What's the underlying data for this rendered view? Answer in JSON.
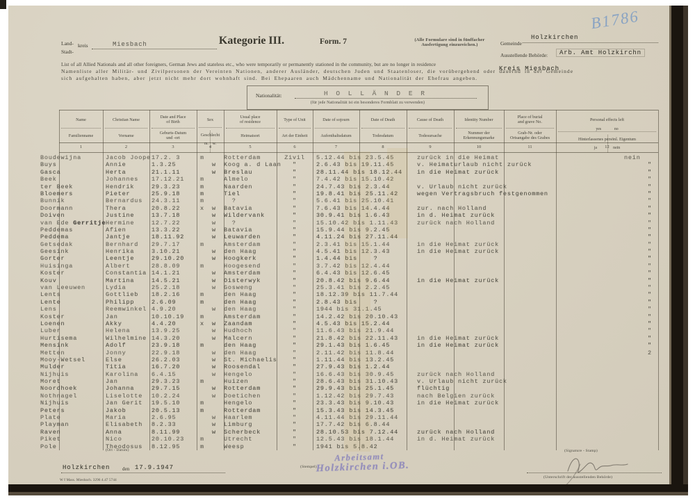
{
  "page": {
    "handwritten_number": "B1786",
    "title": "Kategorie III.",
    "form_no": "Form. 7",
    "note_line1": "(Alle Formulare sind in fünffacher",
    "note_line2": "Ausfertigung einzureichen.)",
    "gemeinde_label": "Gemeinde",
    "gemeinde_value": "Holzkirchen",
    "behoerde_label": "Ausstellende Behörde:",
    "behoerde_value": "Arb. Amt Holzkirchn",
    "kreis_label1": "Land-",
    "kreis_label2": "kreis",
    "stadt_label": "Stadt-",
    "kreis_value": "Miesbach",
    "intro_en": "List of all Allied Nationals and all other foreigners, German Jews and stateless etc., who were temporarily or permanently stationed in the community, but are no longer in residence",
    "intro_kreis_typed": "Kreis Miesbach",
    "intro_de1": "Namenliste aller Militär- und Zivilpersonen der Vereinten Nationen, anderer Ausländer, deutschen Juden und Staatenloser, die vorübergehend oder dauernd in der Gemeinde",
    "intro_de2": "sich aufgehalten haben, aber jetzt nicht mehr dort wohnhaft sind. Bei Ehepaaren auch Mädchenname und Nationalität der Ehefrau angeben.",
    "nationality_label": "Nationalität:",
    "nationality_value": "H O L L Ä N D E R",
    "nationality_note": "(für jede Nationalität ist ein besonderes Formblatt zu verwenden)"
  },
  "table": {
    "columns": [
      {
        "en": "Name",
        "de": "Familienname",
        "num": "1"
      },
      {
        "en": "Christian Name",
        "de": "Vorname",
        "num": "2"
      },
      {
        "en": "Date and Place\nof Birth",
        "de": "Geburts-Datum\nund -ort",
        "num": "3"
      },
      {
        "en": "Sex",
        "de": "Geschlecht",
        "de2": "m.    w.",
        "num": "4"
      },
      {
        "en": "Usual place\nof residence",
        "de": "Heimatsort",
        "num": "5"
      },
      {
        "en": "Type of Unit",
        "de": "Art der Einheit",
        "num": "6"
      },
      {
        "en": "Date of sojourn",
        "de": "Aufenthaltsdatum",
        "num": "7"
      },
      {
        "en": "Date of Death",
        "de": "Todesdatum",
        "num": "8"
      },
      {
        "en": "Cause of Death",
        "de": "Todesursache",
        "num": "9"
      },
      {
        "en": "Identity Number",
        "de": "Nummer der\nErkennungsmarke",
        "num": "10"
      },
      {
        "en": "Place of burial\nand grave No.",
        "de": "Grab-Nr. oder\nOrtsangabe des Grabes",
        "num": "11"
      },
      {
        "en": "Personal effects left",
        "en2": "yes             no",
        "de": "Hinterlassenes persönl. Eigentum",
        "de2": "ja                nein",
        "num": "12"
      }
    ],
    "rows": [
      {
        "n": "Boudewijna",
        "c": "Jacob Joope",
        "b": "17.2. 3",
        "sm": "m",
        "sw": "",
        "res": "Rotterdam",
        "t": "Zivil",
        "s": "5.12.44 bis 23.5.45",
        "r": "zurück in die Heimat",
        "e": "nein"
      },
      {
        "n": "Buys",
        "c": "Annie",
        "b": "1.3.25",
        "sm": "",
        "sw": "w",
        "res": "Koog a. d Laan",
        "t": "\"",
        "s": "2.6.43 bis 19.11.45",
        "r": "v. Heimaturlaub nicht zurück",
        "e": "\""
      },
      {
        "n": "Gasca",
        "c": "Herta",
        "b": "21.1.11",
        "sm": "",
        "sw": "w",
        "res": "Breslau",
        "t": "\"",
        "s": "28.11.44 bis 18.12.44",
        "r": "in die Heimat zurück",
        "e": "\""
      },
      {
        "n": "Beek",
        "c": "Johannes",
        "b": "17.12.21",
        "sm": "m",
        "sw": "",
        "res": "Almelo",
        "t": "\"",
        "s": "7.4.42 bis 15.10.42",
        "r": "",
        "e": "\""
      },
      {
        "n": "ter Beek",
        "c": "Hendrik",
        "b": "29.3.23",
        "sm": "m",
        "sw": "",
        "res": "Naarden",
        "t": "\"",
        "s": "24.7.43 bis 2.3.44",
        "r": "v. Urlaub nicht zurück",
        "e": "\""
      },
      {
        "n": "Bloemers",
        "c": "Pieter",
        "b": "25.9.18",
        "sm": "m",
        "sw": "",
        "res": "Tiel",
        "t": "\"",
        "s": "19.8.41 bis 25.11.42",
        "r": "wegen Vertragsbruch festgenommen",
        "e": "\""
      },
      {
        "n": "Bunnik",
        "c": "Bernardus",
        "b": "24.3.11",
        "sm": "m",
        "sw": "",
        "res": "  ?",
        "t": "\"",
        "s": "5.6.41 bis 25.10.41",
        "r": "",
        "e": "\""
      },
      {
        "n": "Doormann",
        "c": "Thera",
        "b": "20.8.22",
        "sm": "x",
        "sw": "w",
        "res": "Batavia",
        "t": "\"",
        "s": "7.6.43 bis 14.4.44",
        "r": "zur. nach Holland",
        "e": "\""
      },
      {
        "n": "Doiven",
        "c": "Justine",
        "b": "13.7.18",
        "sm": "",
        "sw": "w",
        "res": "Wildervank",
        "t": "\"",
        "s": "30.9.41 bis 1.6.43",
        "r": "in d. Heimat zurück",
        "e": "\""
      },
      {
        "n": "van Ede",
        "hw": " Gerritje",
        "c": "Hermine",
        "b": "12.7.22",
        "sm": "",
        "sw": "w",
        "res": "  ?",
        "t": "\"",
        "s": "15.10.42 bis 1.11.43",
        "r": "zurück nach Holland",
        "e": "\""
      },
      {
        "n": "Peddemas",
        "c": "Afien",
        "b": "13.3.22",
        "sm": "",
        "sw": "w",
        "res": "Batavia",
        "t": "\"",
        "s": "15.9.44 bis 9.2.45",
        "r": "",
        "e": "\""
      },
      {
        "n": "Peddema",
        "c": "Jantje",
        "b": "18.11.92",
        "sm": "",
        "sw": "w",
        "res": "Leuwarden",
        "t": "\"",
        "s": "4.11.24 bis 27.11.44",
        "r": "",
        "e": "\""
      },
      {
        "n": "Getsedak",
        "c": "Bernhard",
        "b": "29.7.17",
        "sm": "m",
        "sw": "",
        "res": "Amsterdam",
        "t": "\"",
        "s": "2.3.41 bis 15.1.44",
        "r": "in die Heimat zurück",
        "e": "\""
      },
      {
        "n": "Geesink",
        "c": "Henrika",
        "b": "3.10.21",
        "sm": "",
        "sw": "w",
        "res": "den Haag",
        "t": "\"",
        "s": "4.5.41 bis 12.3.43",
        "r": "in die Heimat zurück",
        "e": "\""
      },
      {
        "n": "Gorter",
        "c": "Leentje",
        "b": "29.10.20",
        "sm": "",
        "sw": "w",
        "res": "Hoogkerk",
        "t": "\"",
        "s": "1.4.44 bis    ?",
        "r": "",
        "e": "\""
      },
      {
        "n": "Huisinga",
        "c": "Albert",
        "b": "28.8.09",
        "sm": "m",
        "sw": "",
        "res": "Hoogesend",
        "t": "\"",
        "s": "3.7.42 bis 12.4.44",
        "r": "",
        "e": "\""
      },
      {
        "n": "Koster",
        "c": "Constantia",
        "b": "14.1.21",
        "sm": "",
        "sw": "w",
        "res": "Amsterdam",
        "t": "\"",
        "s": "6.4.43 bis 12.6.45",
        "r": "",
        "e": "\""
      },
      {
        "n": "Kouv",
        "c": "Martina",
        "b": "14.5.21",
        "sm": "",
        "sw": "w",
        "res": "Oisterwyk",
        "t": "\"",
        "s": "20.8.42 bis 9.6.44",
        "r": "in die Heimat zurück",
        "e": "\""
      },
      {
        "n": "van Leeuwen",
        "c": "Lydia",
        "b": "25.2.18",
        "sm": "",
        "sw": "w",
        "res": "Gosweng",
        "t": "\"",
        "s": "25.3.41 bis 2.2.45",
        "r": "",
        "e": "\""
      },
      {
        "n": "Lents",
        "c": "Gottlieb",
        "b": "18.2.16",
        "sm": "m",
        "sw": "",
        "res": "den Haag",
        "t": "\"",
        "s": "18.12.39 bis 11.7.44",
        "r": "",
        "e": "\""
      },
      {
        "n": "Lente",
        "c": "Philipp",
        "b": "2.6.09",
        "sm": "m",
        "sw": "",
        "res": "den Haag",
        "t": "\"",
        "s": "2.8.43 bis    ?",
        "r": "",
        "e": "\""
      },
      {
        "n": "Lens",
        "c": "Reemwinkel",
        "b": "4.9.20",
        "sm": "",
        "sw": "w",
        "res": "den Haag",
        "t": "\"",
        "s": "1944 bis 31.1.45",
        "r": "",
        "e": "\""
      },
      {
        "n": "Koster",
        "c": "Jan",
        "b": "10.10.19",
        "sm": "m",
        "sw": "",
        "res": "Amsterdam",
        "t": "\"",
        "s": "14.2.42 bis 20.10.43",
        "r": "",
        "e": "\""
      },
      {
        "n": "Loenen",
        "c": "Akky",
        "b": "4.4.20",
        "sm": "x",
        "sw": "w",
        "res": "Zaandam",
        "t": "\"",
        "s": "4.5.43 bis 15.2.44",
        "r": "",
        "e": "\""
      },
      {
        "n": "Luber",
        "c": "Helena",
        "b": "13.9.25",
        "sm": "",
        "sw": "w",
        "res": "Hudhoch",
        "t": "\"",
        "s": "11.6.43 bis 21.9.44",
        "r": "",
        "e": "\""
      },
      {
        "n": "Hurtisema",
        "c": "Wilhelmine",
        "b": "14.3.20",
        "sm": "",
        "sw": "w",
        "res": "Malcern",
        "t": "\"",
        "s": "21.8.42 bis 22.11.43",
        "r": "in die Heimat zurück",
        "e": "\""
      },
      {
        "n": "Mensink",
        "c": "Adolf",
        "b": "23.9.18",
        "sm": "m",
        "sw": "",
        "res": "den Haag",
        "t": "\"",
        "s": "29.1.43 bis 1.6.45",
        "r": "in die Heimat zurück",
        "e": "\""
      },
      {
        "n": "Metten",
        "c": "Jonny",
        "b": "22.9.18",
        "sm": "",
        "sw": "w",
        "res": "den Haag",
        "t": "\"",
        "s": "2.11.42 bis 11.8.44",
        "r": "",
        "e": "2"
      },
      {
        "n": "Mooy-Wetsel",
        "c": "Else",
        "b": "26.2.03",
        "sm": "",
        "sw": "w",
        "res": "St. Michaelis",
        "t": "\"",
        "s": "1.11.44 bis 13.2.45",
        "r": "",
        "e": ""
      },
      {
        "n": "Mulder",
        "c": "Titia",
        "b": "16.7.20",
        "sm": "",
        "sw": "w",
        "res": "Roosendal",
        "t": "\"",
        "s": "27.9.43 bis 1.2.44",
        "r": "",
        "e": ""
      },
      {
        "n": "Nijhuis",
        "c": "Karolina",
        "b": "6.4.15",
        "sm": "",
        "sw": "w",
        "res": "Hengelo",
        "t": "\"",
        "s": "16.6.43 bis 30.9.45",
        "r": "zurück nach Holland",
        "e": ""
      },
      {
        "n": "Moret",
        "c": "Jan",
        "b": "29.3.23",
        "sm": "m",
        "sw": "",
        "res": "Huizen",
        "t": "\"",
        "s": "28.6.43 bis 31.10.43",
        "r": "v. Urlaub nicht zurück",
        "e": ""
      },
      {
        "n": "Noordhoek",
        "c": "Johanna",
        "b": "29.7.15",
        "sm": "",
        "sw": "w",
        "res": "Rotterdam",
        "t": "\"",
        "s": "29.9.43 bis 25.1.45",
        "r": "flüchtig",
        "e": ""
      },
      {
        "n": "Nothnagel",
        "c": "Liselotte",
        "b": "10.2.24",
        "sm": "",
        "sw": "w",
        "res": "Doetichen",
        "t": "\"",
        "s": "1.12.42 bis 29.7.43",
        "r": "nach Belgien zurück",
        "e": ""
      },
      {
        "n": "Nijhuis",
        "c": "Jan Gerit",
        "b": "19.5.10",
        "sm": "m",
        "sw": "",
        "res": "Hengelo",
        "t": "\"",
        "s": "23.3.43 bis 9.10.43",
        "r": "in die Heimat zurück",
        "e": ""
      },
      {
        "n": "Peters",
        "c": "Jakob",
        "b": "20.5.13",
        "sm": "m",
        "sw": "",
        "res": "Rotterdam",
        "t": "\"",
        "s": "15.3.43 bis 14.3.45",
        "r": "",
        "e": ""
      },
      {
        "n": "Plate",
        "c": "Maria",
        "b": "2.6.95",
        "sm": "",
        "sw": "w",
        "res": "Haarlem",
        "t": "\"",
        "s": "4.11.44 bis 29.11.44",
        "r": "",
        "e": ""
      },
      {
        "n": "Playman",
        "c": "Elisabeth",
        "b": "8.2.33",
        "sm": "",
        "sw": "w",
        "res": "Limburg",
        "t": "\"",
        "s": "17.7.42 bis 6.8.44",
        "r": "",
        "e": ""
      },
      {
        "n": "Raven",
        "c": "Anna",
        "b": "8.11.99",
        "sm": "",
        "sw": "w",
        "res": "Scherbeck",
        "t": "\"",
        "s": "28.10.53 bis 7.12.44",
        "r": "zurück nach Holland",
        "e": ""
      },
      {
        "n": "Piket",
        "c": "Nico",
        "b": "20.10.23",
        "sm": "m",
        "sw": "",
        "res": "Utrecht",
        "t": "\"",
        "s": "12.5.43 bis 18.1.44",
        "r": "in d. Heimat zurück",
        "e": ""
      },
      {
        "n": "Pole",
        "c": "Theodosus",
        "b": "8.12.95",
        "sm": "m",
        "sw": "",
        "res": "Weesp",
        "t": "\"",
        "s": "1941 bis 5.8.42",
        "r": "",
        "e": ""
      }
    ]
  },
  "footer": {
    "ort_datum_label": "(Ort - Datum)",
    "place": "Holzkirchen",
    "den_label": "den",
    "date": "17.9.1947",
    "print_code": "W f Mass. Miesbach.  3296 4.47 5744",
    "stempel_label": "(Stempel)",
    "stamp_line1": "Arbeitsamt",
    "stamp_line2": "Holzkirchen i.OB.",
    "signature_label": "(Signature - Stamp)",
    "unterschrift_label": "(Unterschrift der ausstellenden Behörde)"
  },
  "colors": {
    "paper": "#d8d1c0",
    "stamp_ink": "#8e88bb",
    "handwriting_ink": "#7c9cc4",
    "typed_ink": "#413f36"
  }
}
